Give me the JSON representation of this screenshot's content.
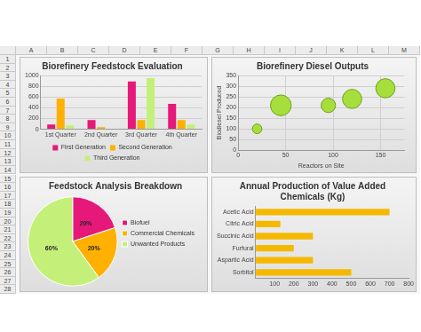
{
  "sheet": {
    "columns": [
      "A",
      "B",
      "C",
      "D",
      "E",
      "F",
      "G",
      "H",
      "I",
      "J",
      "K",
      "L",
      "M"
    ],
    "rows": [
      1,
      2,
      3,
      4,
      5,
      6,
      7,
      8,
      9,
      10,
      11,
      12,
      13,
      14,
      15,
      16,
      17,
      18,
      19,
      20,
      21,
      22,
      23,
      24,
      25,
      26,
      27,
      28
    ]
  },
  "chart_data": [
    {
      "type": "bar",
      "title": "Biorefinery Feedstock Evaluation",
      "categories": [
        "1st Quarter",
        "2nd Quarter",
        "3rd Quarter",
        "4th Quarter"
      ],
      "series": [
        {
          "name": "First Generation",
          "color": "#e6197a",
          "values": [
            90,
            170,
            890,
            470
          ]
        },
        {
          "name": "Second Generation",
          "color": "#ffb000",
          "values": [
            570,
            40,
            170,
            170
          ]
        },
        {
          "name": "Third Generation",
          "color": "#c4f07a",
          "values": [
            70,
            10,
            950,
            90
          ]
        }
      ],
      "ylim": [
        0,
        1000
      ],
      "yticks": [
        0,
        200,
        400,
        600,
        800,
        1000
      ],
      "grid": true,
      "legend": "bottom"
    },
    {
      "type": "bubble",
      "title": "Biorefinery Diesel Outputs",
      "x_label": "Reactors on Site",
      "y_label": "Biodiesel Produced",
      "x": [
        20,
        45,
        95,
        120,
        155
      ],
      "values": [
        100,
        210,
        210,
        240,
        290
      ],
      "sizes": [
        6,
        13,
        9,
        12,
        12
      ],
      "color": "#a6df3c",
      "xlim": [
        0,
        175
      ],
      "xticks": [
        0,
        50,
        100,
        150
      ],
      "ylim": [
        0,
        350
      ],
      "yticks": [
        0,
        50,
        100,
        150,
        200,
        250,
        300,
        350
      ],
      "grid": true
    },
    {
      "type": "pie",
      "title": "Feedstock Analysis Breakdown",
      "categories": [
        "Biofuel",
        "Commercial Chemicals",
        "Unwanted Products"
      ],
      "values": [
        20,
        20,
        60
      ],
      "value_labels": [
        "20%",
        "20%",
        "60%"
      ],
      "colors": [
        "#e6197a",
        "#ffb000",
        "#c4f07a"
      ],
      "legend": "right",
      "data_labels": true
    },
    {
      "type": "bar",
      "title": [
        "Annual Production of Value Added",
        "Chemicals (Kg)"
      ],
      "categories": [
        "Acetic Acid",
        "Citric Acid",
        "Succinic Acid",
        "Furfural",
        "Aspartic Acid",
        "Sorbitol"
      ],
      "values": [
        700,
        130,
        300,
        200,
        300,
        500
      ],
      "color": "#f5b800",
      "orientation": "horizontal",
      "xlim": [
        0,
        800
      ],
      "xticks": [
        100,
        200,
        300,
        400,
        500,
        600,
        700,
        800
      ],
      "grid": false
    }
  ]
}
